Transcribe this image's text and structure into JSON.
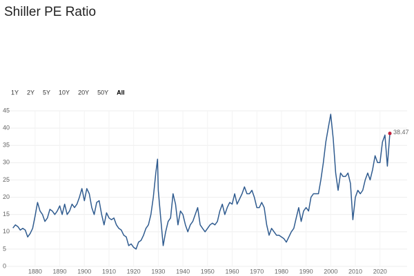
{
  "chart_data": {
    "type": "line",
    "title": "Shiller PE Ratio",
    "range_selector": {
      "options": [
        "1Y",
        "2Y",
        "5Y",
        "10Y",
        "20Y",
        "50Y",
        "All"
      ],
      "selected": "All"
    },
    "x": [
      1871,
      1872,
      1873,
      1874,
      1875,
      1876,
      1877,
      1878,
      1879,
      1880,
      1881,
      1882,
      1883,
      1884,
      1885,
      1886,
      1887,
      1888,
      1889,
      1890,
      1891,
      1892,
      1893,
      1894,
      1895,
      1896,
      1897,
      1898,
      1899,
      1900,
      1901,
      1902,
      1903,
      1904,
      1905,
      1906,
      1907,
      1908,
      1909,
      1910,
      1911,
      1912,
      1913,
      1914,
      1915,
      1916,
      1917,
      1918,
      1919,
      1920,
      1921,
      1922,
      1923,
      1924,
      1925,
      1926,
      1927,
      1928,
      1929,
      1929.7,
      1930,
      1931,
      1932,
      1933,
      1934,
      1935,
      1936,
      1937,
      1938,
      1939,
      1940,
      1941,
      1942,
      1943,
      1944,
      1945,
      1946,
      1947,
      1948,
      1949,
      1950,
      1951,
      1952,
      1953,
      1954,
      1955,
      1956,
      1957,
      1958,
      1959,
      1960,
      1961,
      1962,
      1963,
      1964,
      1965,
      1966,
      1967,
      1968,
      1969,
      1970,
      1971,
      1972,
      1973,
      1974,
      1975,
      1976,
      1977,
      1978,
      1979,
      1980,
      1981,
      1982,
      1983,
      1984,
      1985,
      1986,
      1987,
      1988,
      1989,
      1990,
      1991,
      1992,
      1993,
      1994,
      1995,
      1996,
      1997,
      1998,
      1999,
      2000,
      2001,
      2002,
      2003,
      2004,
      2005,
      2006,
      2007,
      2008,
      2009,
      2010,
      2011,
      2012,
      2013,
      2014,
      2015,
      2016,
      2017,
      2018,
      2019,
      2020,
      2021,
      2022,
      2023,
      2024
    ],
    "series": [
      {
        "name": "Shiller PE Ratio",
        "color": "#2f5b8f",
        "values": [
          11.1,
          12,
          11.5,
          10.5,
          11,
          10.5,
          8.5,
          9.5,
          11,
          14.5,
          18.5,
          16,
          15,
          13,
          14,
          16.5,
          16,
          15,
          16,
          17.5,
          15,
          18,
          15,
          16,
          18,
          17,
          18,
          20,
          22.5,
          19,
          22.5,
          21,
          17,
          15,
          18.5,
          19,
          15,
          12,
          15.5,
          14,
          13.5,
          14,
          12,
          11,
          10.5,
          9,
          8.5,
          6,
          6.5,
          5.5,
          5,
          7,
          7.5,
          9,
          11,
          12,
          15,
          20,
          27,
          31,
          22,
          14,
          6,
          10,
          13,
          14,
          21,
          18,
          12,
          16,
          15,
          12,
          10,
          12,
          13,
          15,
          17,
          12,
          11,
          10,
          11,
          12,
          12.5,
          12,
          13,
          16,
          18,
          15,
          17,
          18.5,
          18,
          21,
          18,
          19.5,
          21,
          23,
          21,
          21,
          22,
          20,
          17,
          17,
          18.5,
          17,
          12,
          9,
          11,
          10,
          9,
          9,
          8.5,
          8,
          7,
          8.5,
          10,
          11,
          14,
          17,
          13,
          16,
          17,
          16,
          20,
          21,
          21,
          21,
          25,
          30,
          36,
          40,
          44,
          37,
          27,
          22,
          27,
          26,
          26,
          27,
          24,
          13.5,
          20,
          22,
          21,
          22,
          25,
          27,
          25,
          28,
          32,
          30,
          30,
          36,
          38,
          29,
          38.47
        ]
      }
    ],
    "xlim": [
      1868,
      2031
    ],
    "xticks": [
      1880,
      1890,
      1900,
      1910,
      1920,
      1930,
      1940,
      1950,
      1960,
      1970,
      1980,
      1990,
      2000,
      2010,
      2020
    ],
    "ylim": [
      0,
      45
    ],
    "yticks": [
      0,
      5,
      10,
      15,
      20,
      25,
      30,
      35,
      40,
      45
    ],
    "grid": true,
    "last_point_color": "#c0203a"
  }
}
